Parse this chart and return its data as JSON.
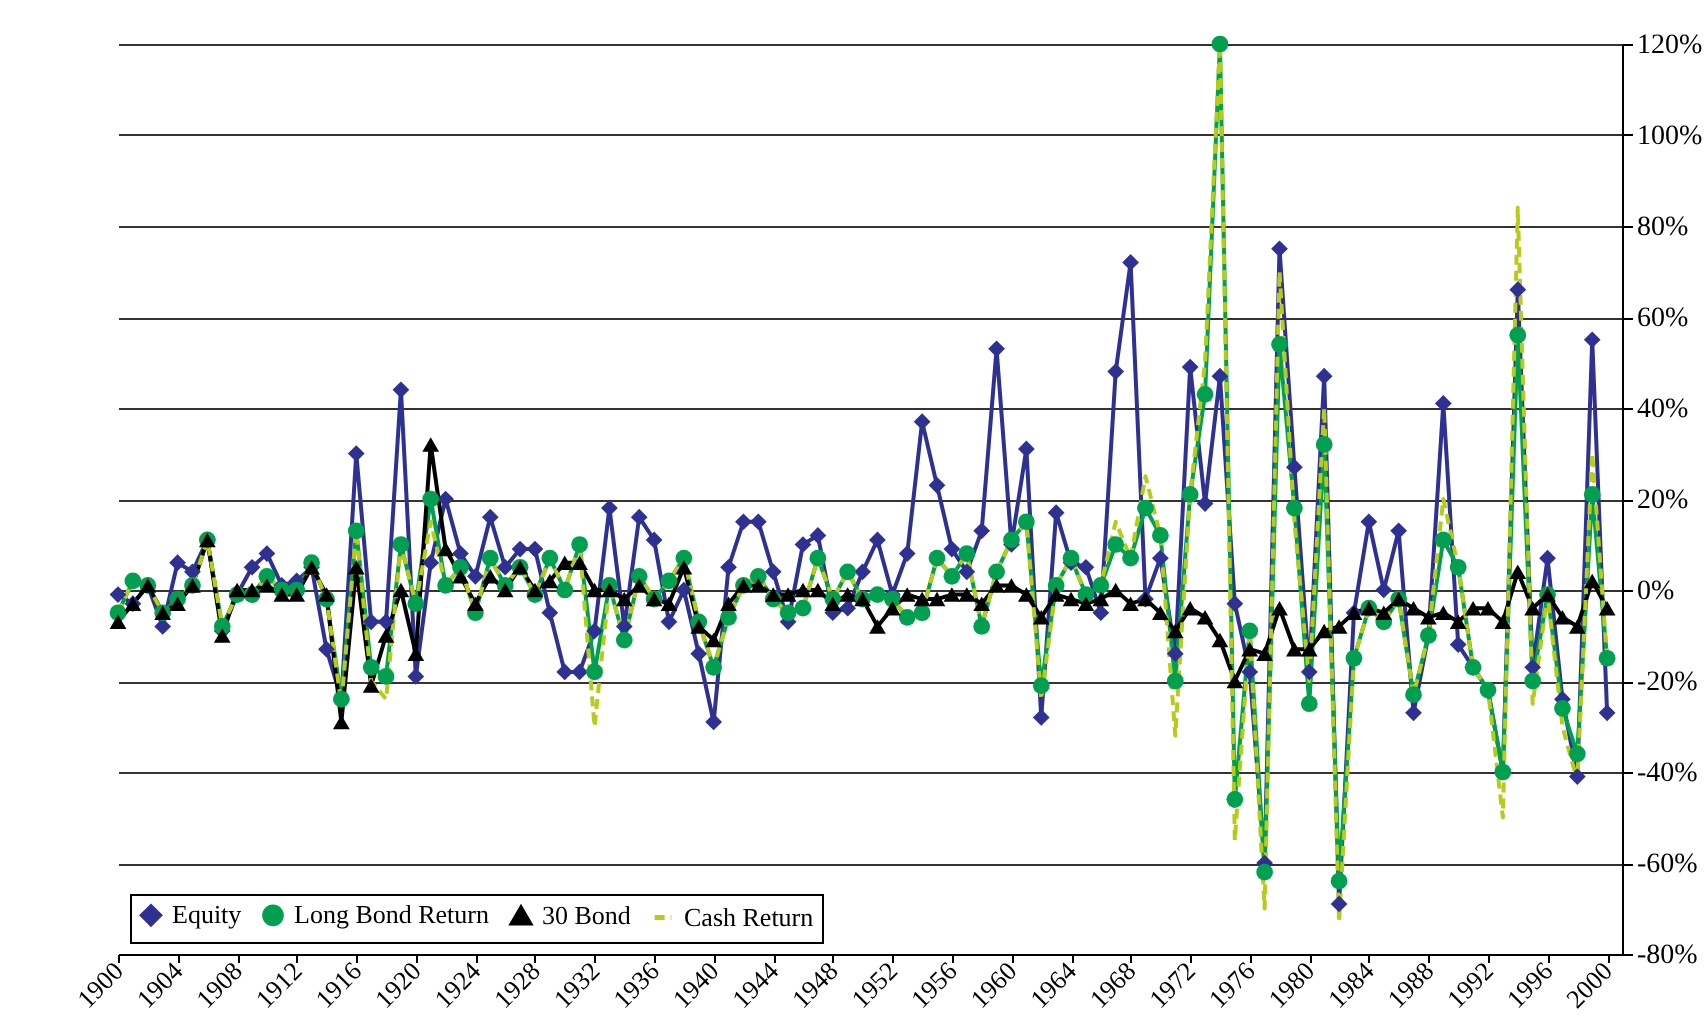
{
  "chart_data": {
    "type": "line",
    "x": [
      1900,
      1901,
      1902,
      1903,
      1904,
      1905,
      1906,
      1907,
      1908,
      1909,
      1910,
      1911,
      1912,
      1913,
      1914,
      1915,
      1916,
      1917,
      1918,
      1919,
      1920,
      1921,
      1922,
      1923,
      1924,
      1925,
      1926,
      1927,
      1928,
      1929,
      1930,
      1931,
      1932,
      1933,
      1934,
      1935,
      1936,
      1937,
      1938,
      1939,
      1940,
      1941,
      1942,
      1943,
      1944,
      1945,
      1946,
      1947,
      1948,
      1949,
      1950,
      1951,
      1952,
      1953,
      1954,
      1955,
      1956,
      1957,
      1958,
      1959,
      1960,
      1961,
      1962,
      1963,
      1964,
      1965,
      1966,
      1967,
      1968,
      1969,
      1970,
      1971,
      1972,
      1973,
      1974,
      1975,
      1976,
      1977,
      1978,
      1979,
      1980,
      1981,
      1982,
      1983,
      1984,
      1985,
      1986,
      1987,
      1988,
      1989,
      1990,
      1991,
      1992,
      1993,
      1994,
      1995,
      1996,
      1997,
      1998,
      1999,
      2000
    ],
    "series": [
      {
        "name": "Equity",
        "color": "#2e3192",
        "marker": "diamond",
        "line_style": "solid",
        "values": [
          -1,
          -3,
          1,
          -8,
          6,
          4,
          11,
          -9,
          -1,
          5,
          8,
          1,
          2,
          5,
          -13,
          -24,
          30,
          -7,
          -7,
          44,
          -19,
          6,
          20,
          8,
          3,
          16,
          5,
          9,
          9,
          -5,
          -18,
          -18,
          -9,
          18,
          -8,
          16,
          11,
          -7,
          0,
          -14,
          -29,
          5,
          15,
          15,
          4,
          -7,
          10,
          12,
          -5,
          -4,
          4,
          11,
          -1,
          8,
          37,
          23,
          9,
          4,
          13,
          53,
          10,
          31,
          -28,
          17,
          6,
          5,
          -5,
          48,
          72,
          -2,
          7,
          -14,
          49,
          19,
          47,
          -3,
          -18,
          -60,
          75,
          27,
          -18,
          47,
          -69,
          -5,
          15,
          0,
          13,
          -27,
          -10,
          41,
          -12,
          -17,
          -22,
          -40,
          66,
          -17,
          7,
          -24,
          -41,
          55,
          -27
        ]
      },
      {
        "name": "Long Bond Return",
        "color": "#00a050",
        "marker": "circle",
        "line_style": "solid",
        "values": [
          -5,
          2,
          1,
          -5,
          -2,
          1,
          11,
          -8,
          -1,
          -1,
          3,
          0,
          0,
          6,
          -2,
          -24,
          13,
          -17,
          -19,
          10,
          -3,
          20,
          1,
          5,
          -5,
          7,
          1,
          5,
          -1,
          7,
          0,
          10,
          -18,
          1,
          -11,
          3,
          -2,
          2,
          7,
          -7,
          -17,
          -6,
          1,
          3,
          -2,
          -5,
          -4,
          7,
          -2,
          4,
          -2,
          -1,
          -2,
          -6,
          -5,
          7,
          3,
          8,
          -8,
          4,
          11,
          15,
          -21,
          1,
          7,
          -1,
          1,
          10,
          7,
          18,
          12,
          -20,
          21,
          43,
          120,
          -46,
          -9,
          -62,
          54,
          18,
          -25,
          32,
          -64,
          -15,
          -4,
          -7,
          -2,
          -23,
          -10,
          11,
          5,
          -17,
          -22,
          -40,
          56,
          -20,
          -1,
          -26,
          -36,
          21,
          -15
        ]
      },
      {
        "name": "30 Bond",
        "color": "#000000",
        "marker": "triangle",
        "line_style": "solid",
        "values": [
          -7,
          -3,
          1,
          -5,
          -3,
          1,
          11,
          -10,
          0,
          0,
          1,
          -1,
          -1,
          5,
          -1,
          -29,
          5,
          -21,
          -10,
          0,
          -14,
          32,
          9,
          3,
          -3,
          3,
          0,
          5,
          0,
          2,
          6,
          6,
          0,
          0,
          -2,
          1,
          -2,
          -3,
          5,
          -8,
          -11,
          -3,
          1,
          1,
          -1,
          -1,
          0,
          0,
          -3,
          -1,
          -2,
          -8,
          -4,
          -1,
          -2,
          -2,
          -1,
          -1,
          -3,
          1,
          1,
          -1,
          -6,
          -1,
          -2,
          -3,
          -2,
          0,
          -3,
          -2,
          -5,
          -9,
          -4,
          -6,
          -11,
          -20,
          -13,
          -14,
          -4,
          -13,
          -13,
          -9,
          -8,
          -5,
          -4,
          -5,
          -2,
          -4,
          -6,
          -5,
          -7,
          -4,
          -4,
          -7,
          4,
          -4,
          -1,
          -6,
          -8,
          2,
          -4
        ]
      },
      {
        "name": "Cash Return",
        "color": "#b5cc18",
        "marker": "none",
        "line_style": "dashed",
        "values": [
          -5,
          2,
          1,
          -5,
          -2,
          1,
          11,
          -8,
          -1,
          -1,
          3,
          0,
          0,
          6,
          -2,
          -25,
          13,
          -20,
          -24,
          10,
          -3,
          15,
          1,
          5,
          -5,
          7,
          1,
          5,
          -1,
          7,
          0,
          10,
          -30,
          1,
          -11,
          3,
          -2,
          2,
          7,
          -7,
          -17,
          -6,
          1,
          3,
          -2,
          -5,
          -4,
          7,
          -2,
          4,
          -2,
          -1,
          -2,
          -6,
          -5,
          7,
          3,
          8,
          -8,
          4,
          11,
          15,
          -24,
          1,
          7,
          -1,
          1,
          15,
          7,
          25,
          12,
          -32,
          21,
          50,
          120,
          -55,
          -9,
          -70,
          70,
          15,
          -20,
          40,
          -73,
          -15,
          -4,
          -7,
          -2,
          -23,
          -10,
          20,
          5,
          -17,
          -22,
          -50,
          84,
          -25,
          -1,
          -30,
          -42,
          30,
          -15
        ]
      }
    ],
    "xlim": [
      1900,
      2001
    ],
    "xticks": [
      1900,
      1904,
      1908,
      1912,
      1916,
      1920,
      1924,
      1928,
      1932,
      1936,
      1940,
      1944,
      1948,
      1952,
      1956,
      1960,
      1964,
      1968,
      1972,
      1976,
      1980,
      1984,
      1988,
      1992,
      1996,
      2000
    ],
    "ylim": [
      -80,
      120
    ],
    "yticks": [
      {
        "value": -80,
        "label": "-80%"
      },
      {
        "value": -60,
        "label": "-60%"
      },
      {
        "value": -40,
        "label": "-40%"
      },
      {
        "value": -20,
        "label": "-20%"
      },
      {
        "value": 0,
        "label": "0%"
      },
      {
        "value": 20,
        "label": "20%"
      },
      {
        "value": 40,
        "label": "40%"
      },
      {
        "value": 60,
        "label": "60%"
      },
      {
        "value": 80,
        "label": "80%"
      },
      {
        "value": 100,
        "label": "100%"
      },
      {
        "value": 120,
        "label": "120%"
      }
    ],
    "grid": "y",
    "legend": "bottom left"
  }
}
